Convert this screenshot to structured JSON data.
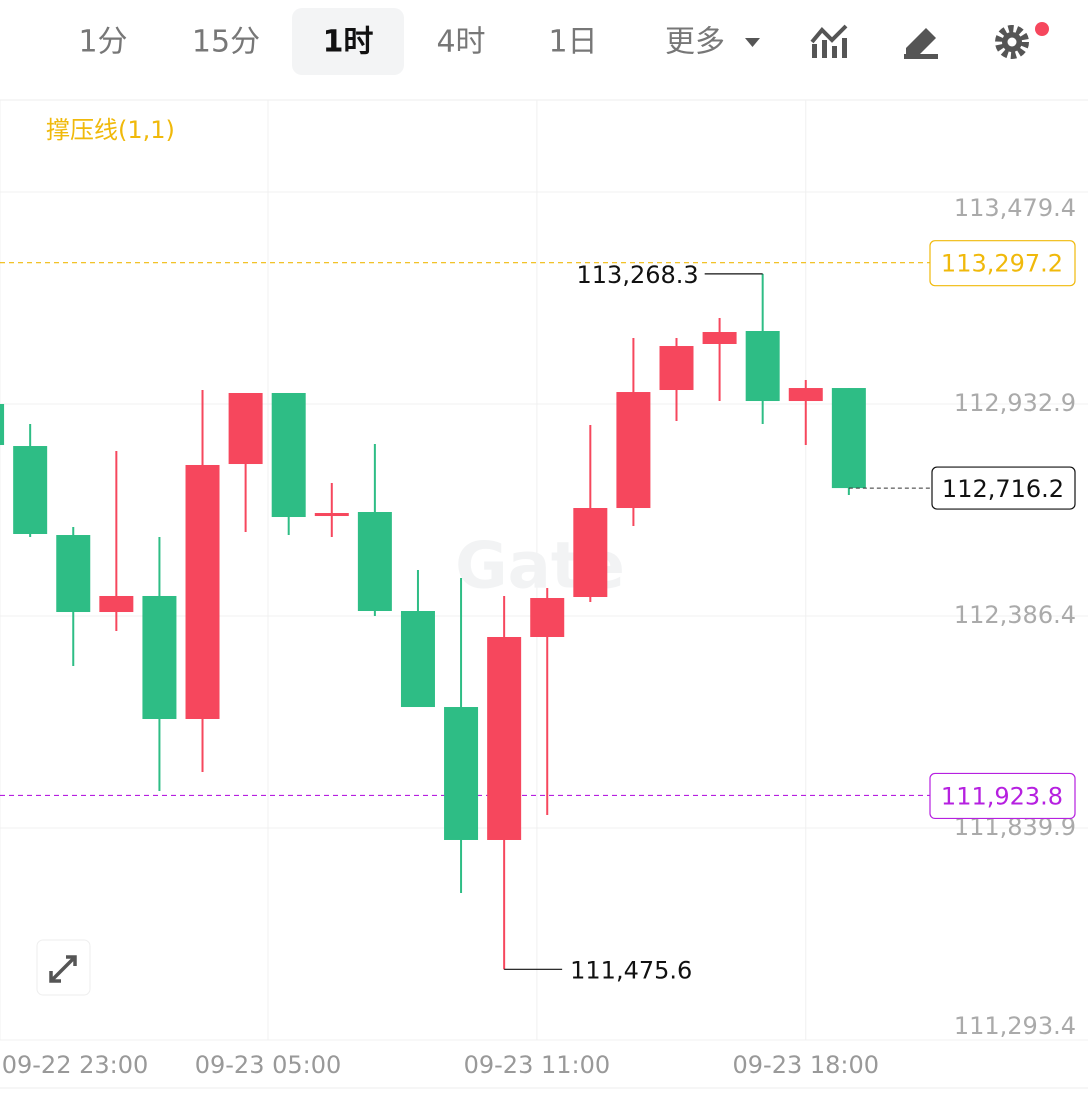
{
  "toolbar": {
    "tabs": [
      "1分",
      "15分",
      "1时",
      "4时",
      "1日",
      "更多"
    ],
    "active": 2
  },
  "chart_data": {
    "type": "candlestick",
    "indicator": "撑压线(1,1)",
    "watermark": "Gate",
    "series": [
      {
        "up_color": "#f6475d",
        "down_color": "#2ebd85",
        "open": [
          112932.9,
          112824.6,
          112595.2,
          112396.7,
          112438.0,
          112120.9,
          112778.2,
          112961.3,
          112644.2,
          112654.5,
          112399.3,
          112151.8,
          111809.0,
          112332.3,
          112435.4,
          112664.8,
          112969.0,
          113087.6,
          113121.1,
          112940.6,
          112974.1
        ],
        "high": [
          112932.9,
          112881.3,
          112615.8,
          112811.7,
          112590.1,
          112969.0,
          112961.3,
          112961.3,
          112729.3,
          112829.8,
          112505.0,
          112484.4,
          112438.0,
          112458.6,
          112878.8,
          113103.0,
          113103.0,
          113154.6,
          113268.3,
          112994.8,
          112974.1
        ],
        "low": [
          112827.2,
          112590.1,
          112257.5,
          112347.7,
          111935.3,
          111984.3,
          112602.9,
          112595.2,
          112590.1,
          112386.4,
          112151.8,
          111672.4,
          111475.6,
          111873.4,
          112422.5,
          112618.4,
          112889.1,
          112940.6,
          112881.3,
          112827.2,
          112698.3
        ],
        "close": [
          112827.2,
          112597.8,
          112396.7,
          112438.0,
          112120.9,
          112775.7,
          112961.3,
          112641.6,
          112651.9,
          112399.3,
          112151.8,
          111809.0,
          112332.3,
          112432.8,
          112664.8,
          112963.8,
          113082.4,
          113118.5,
          112940.6,
          112974.1,
          112716.2
        ]
      }
    ],
    "ylim": [
      111293.4,
      113716.6
    ],
    "yticks": [
      {
        "value": 113479.4,
        "label": "113,479.4"
      },
      {
        "value": 112932.9,
        "label": "112,932.9"
      },
      {
        "value": 112386.4,
        "label": "112,386.4"
      },
      {
        "value": 111839.9,
        "label": "111,839.9"
      },
      {
        "value": 111293.4,
        "label": "111,293.4"
      }
    ],
    "xlim": [
      0.3,
      25.55
    ],
    "xticks": [
      {
        "value": 0.3,
        "label": "09-22 23:00"
      },
      {
        "value": 6.52,
        "label": "09-23 05:00"
      },
      {
        "value": 12.76,
        "label": "09-23 11:00"
      },
      {
        "value": 19.0,
        "label": "09-23 18:00"
      }
    ],
    "grid": true,
    "lines": [
      {
        "value": 113297.2,
        "label": "113,297.2",
        "color": "#f0b90b"
      },
      {
        "value": 111923.8,
        "label": "111,923.8",
        "color": "#b620e0"
      }
    ],
    "last_price": {
      "value": 112716.2,
      "label": "112,716.2"
    },
    "high_mark": {
      "value": 113268.3,
      "label": "113,268.3"
    },
    "low_mark": {
      "value": 111475.6,
      "label": "111,475.6"
    }
  }
}
